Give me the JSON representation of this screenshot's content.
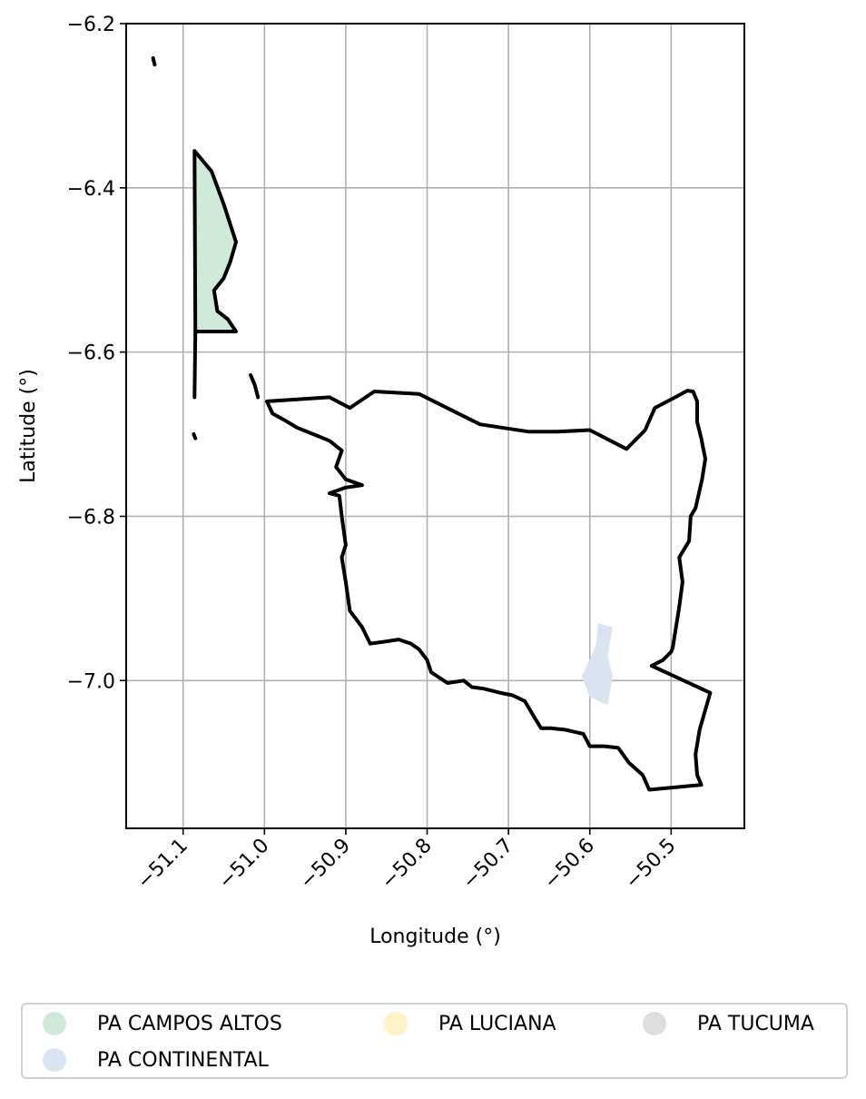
{
  "chart_data": {
    "type": "map",
    "xlabel": "Longitude (°)",
    "ylabel": "Latitude (°)",
    "xlim": [
      -51.17,
      -50.41
    ],
    "ylim": [
      -7.18,
      -6.2
    ],
    "xticks": [
      -51.1,
      -51.0,
      -50.9,
      -50.8,
      -50.7,
      -50.6,
      -50.5
    ],
    "xtick_labels": [
      "−51.1",
      "−51.0",
      "−50.9",
      "−50.8",
      "−50.7",
      "−50.6",
      "−50.5"
    ],
    "yticks": [
      -6.2,
      -6.4,
      -6.6,
      -6.8,
      -7.0
    ],
    "ytick_labels": [
      "−6.2",
      "−6.4",
      "−6.6",
      "−6.8",
      "−7.0"
    ],
    "grid": true,
    "legend_placement": "bottom",
    "legend": [
      {
        "name": "PA CAMPOS ALTOS",
        "color": "#cfeadb"
      },
      {
        "name": "PA CONTINENTAL",
        "color": "#dce3f0"
      },
      {
        "name": "PA LUCIANA",
        "color": "#fdf3c6"
      },
      {
        "name": "PA TUCUMA",
        "color": "#dedede"
      }
    ],
    "boundary_outline": [
      [
        -50.997,
        -6.66
      ],
      [
        -50.92,
        -6.655
      ],
      [
        -50.895,
        -6.668
      ],
      [
        -50.865,
        -6.648
      ],
      [
        -50.81,
        -6.651
      ],
      [
        -50.735,
        -6.688
      ],
      [
        -50.675,
        -6.697
      ],
      [
        -50.64,
        -6.697
      ],
      [
        -50.6,
        -6.695
      ],
      [
        -50.555,
        -6.718
      ],
      [
        -50.532,
        -6.695
      ],
      [
        -50.52,
        -6.668
      ],
      [
        -50.495,
        -6.655
      ],
      [
        -50.48,
        -6.647
      ],
      [
        -50.473,
        -6.648
      ],
      [
        -50.468,
        -6.66
      ],
      [
        -50.468,
        -6.685
      ],
      [
        -50.463,
        -6.705
      ],
      [
        -50.458,
        -6.73
      ],
      [
        -50.462,
        -6.755
      ],
      [
        -50.47,
        -6.79
      ],
      [
        -50.476,
        -6.8
      ],
      [
        -50.478,
        -6.83
      ],
      [
        -50.49,
        -6.85
      ],
      [
        -50.486,
        -6.88
      ],
      [
        -50.49,
        -6.91
      ],
      [
        -50.498,
        -6.96
      ],
      [
        -50.5,
        -6.965
      ],
      [
        -50.51,
        -6.975
      ],
      [
        -50.524,
        -6.982
      ],
      [
        -50.452,
        -7.015
      ],
      [
        -50.465,
        -7.06
      ],
      [
        -50.47,
        -7.09
      ],
      [
        -50.468,
        -7.115
      ],
      [
        -50.463,
        -7.127
      ],
      [
        -50.527,
        -7.133
      ],
      [
        -50.535,
        -7.115
      ],
      [
        -50.552,
        -7.1
      ],
      [
        -50.565,
        -7.082
      ],
      [
        -50.582,
        -7.08
      ],
      [
        -50.6,
        -7.08
      ],
      [
        -50.608,
        -7.065
      ],
      [
        -50.63,
        -7.06
      ],
      [
        -50.648,
        -7.058
      ],
      [
        -50.66,
        -7.058
      ],
      [
        -50.668,
        -7.045
      ],
      [
        -50.68,
        -7.025
      ],
      [
        -50.695,
        -7.018
      ],
      [
        -50.71,
        -7.015
      ],
      [
        -50.73,
        -7.01
      ],
      [
        -50.745,
        -7.008
      ],
      [
        -50.755,
        -7.0
      ],
      [
        -50.775,
        -7.003
      ],
      [
        -50.795,
        -6.99
      ],
      [
        -50.8,
        -6.975
      ],
      [
        -50.81,
        -6.962
      ],
      [
        -50.82,
        -6.955
      ],
      [
        -50.835,
        -6.95
      ],
      [
        -50.855,
        -6.953
      ],
      [
        -50.87,
        -6.955
      ],
      [
        -50.88,
        -6.935
      ],
      [
        -50.895,
        -6.915
      ],
      [
        -50.9,
        -6.88
      ],
      [
        -50.905,
        -6.85
      ],
      [
        -50.9,
        -6.835
      ],
      [
        -50.905,
        -6.8
      ],
      [
        -50.908,
        -6.775
      ],
      [
        -50.92,
        -6.772
      ],
      [
        -50.9,
        -6.765
      ],
      [
        -50.88,
        -6.762
      ],
      [
        -50.9,
        -6.755
      ],
      [
        -50.912,
        -6.74
      ],
      [
        -50.905,
        -6.72
      ],
      [
        -50.92,
        -6.708
      ],
      [
        -50.94,
        -6.7
      ],
      [
        -50.96,
        -6.692
      ],
      [
        -50.975,
        -6.683
      ],
      [
        -50.99,
        -6.675
      ],
      [
        -50.997,
        -6.66
      ]
    ],
    "campos_altos_outline": [
      [
        -51.086,
        -6.355
      ],
      [
        -51.065,
        -6.38
      ],
      [
        -51.05,
        -6.42
      ],
      [
        -51.035,
        -6.466
      ],
      [
        -51.042,
        -6.49
      ],
      [
        -51.05,
        -6.51
      ],
      [
        -51.062,
        -6.525
      ],
      [
        -51.058,
        -6.55
      ],
      [
        -51.045,
        -6.56
      ],
      [
        -51.035,
        -6.575
      ],
      [
        -51.085,
        -6.575
      ],
      [
        -51.086,
        -6.355
      ]
    ],
    "continental_patch": [
      [
        -50.59,
        -6.93
      ],
      [
        -50.572,
        -6.935
      ],
      [
        -50.578,
        -6.97
      ],
      [
        -50.572,
        -6.995
      ],
      [
        -50.578,
        -7.03
      ],
      [
        -50.6,
        -7.02
      ],
      [
        -50.61,
        -6.995
      ],
      [
        -50.598,
        -6.97
      ],
      [
        -50.592,
        -6.955
      ],
      [
        -50.59,
        -6.93
      ]
    ],
    "islets": [
      [
        [
          -51.137,
          -6.242
        ],
        [
          -51.135,
          -6.25
        ]
      ],
      [
        [
          -51.085,
          -6.575
        ],
        [
          -51.086,
          -6.655
        ]
      ],
      [
        [
          -51.087,
          -6.7
        ],
        [
          -51.085,
          -6.705
        ]
      ],
      [
        [
          -51.017,
          -6.628
        ],
        [
          -51.012,
          -6.64
        ],
        [
          -51.008,
          -6.655
        ]
      ]
    ]
  }
}
